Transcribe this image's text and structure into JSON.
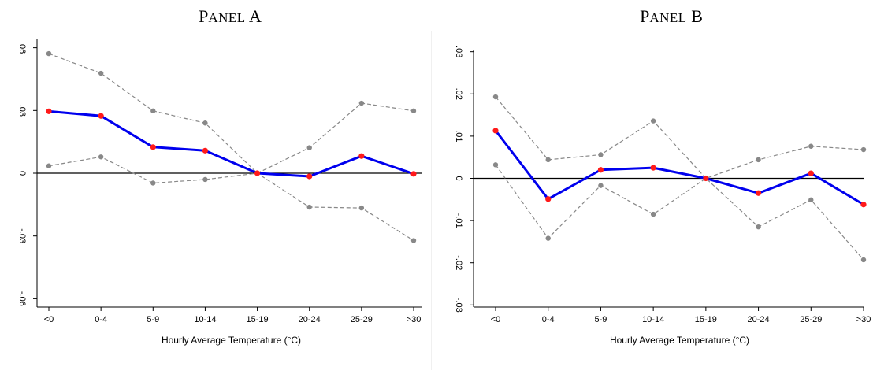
{
  "colors": {
    "estimate_line": "#0000ee",
    "estimate_marker": "#ff1a1a",
    "ci": "#888888",
    "zero_line": "#000000"
  },
  "chart_data": [
    {
      "type": "line",
      "title": "PANEL A",
      "xlabel": "Hourly Average Temperature (°C)",
      "ylabel": "",
      "categories": [
        "<0",
        "0-4",
        "5-9",
        "10-14",
        "15-19",
        "20-24",
        "25-29",
        ">30"
      ],
      "yticks": [
        -0.06,
        -0.03,
        0,
        0.03,
        0.06
      ],
      "ytick_labels": [
        "-.06",
        "-.03",
        "0",
        ".03",
        ".06"
      ],
      "ylim": [
        -0.064,
        0.064
      ],
      "grid": false,
      "series": [
        {
          "role": "estimate",
          "values": [
            0.0296,
            0.0274,
            0.0125,
            0.0108,
            0.0,
            -0.0015,
            0.0082,
            -0.0003
          ]
        },
        {
          "role": "upper",
          "values": [
            0.0572,
            0.0478,
            0.0298,
            0.024,
            0.0,
            0.0122,
            0.0335,
            0.0298
          ]
        },
        {
          "role": "lower",
          "values": [
            0.0035,
            0.0078,
            -0.0047,
            -0.003,
            0.0,
            -0.0162,
            -0.0166,
            -0.0322
          ]
        }
      ]
    },
    {
      "type": "line",
      "title": "PANEL B",
      "xlabel": "Hourly Average Temperature (°C)",
      "ylabel": "",
      "categories": [
        "<0",
        "0-4",
        "5-9",
        "10-14",
        "15-19",
        "20-24",
        "25-29",
        ">30"
      ],
      "yticks": [
        -0.03,
        -0.02,
        -0.01,
        0,
        0.01,
        0.02,
        0.03
      ],
      "ytick_labels": [
        "-.03",
        "-.02",
        "-.01",
        "0",
        ".01",
        ".02",
        ".03"
      ],
      "ylim": [
        -0.0305,
        0.0305
      ],
      "grid": false,
      "series": [
        {
          "role": "estimate",
          "values": [
            0.0113,
            -0.0049,
            0.002,
            0.0025,
            0.0,
            -0.0035,
            0.0012,
            -0.0062
          ]
        },
        {
          "role": "upper",
          "values": [
            0.0193,
            0.0044,
            0.0056,
            0.0136,
            0.0,
            0.0044,
            0.0076,
            0.0068
          ]
        },
        {
          "role": "lower",
          "values": [
            0.0032,
            -0.0142,
            -0.0017,
            -0.0085,
            0.0,
            -0.0115,
            -0.0051,
            -0.0193
          ]
        }
      ]
    }
  ]
}
